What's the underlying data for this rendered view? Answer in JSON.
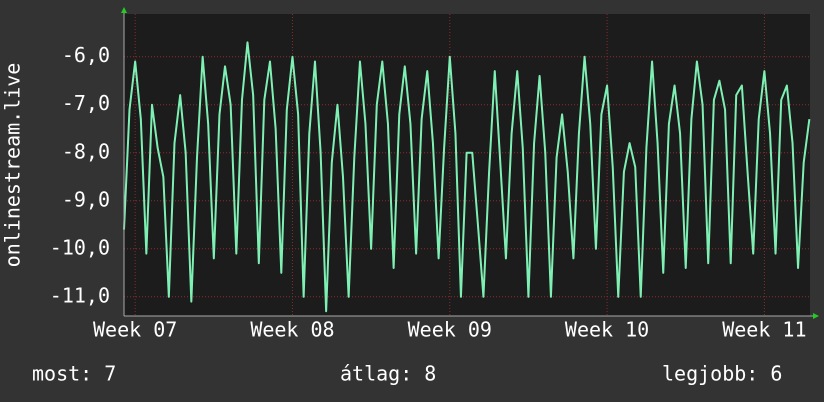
{
  "chart_data": {
    "type": "line",
    "y_label": "onlinestream.live",
    "x": [
      6.929,
      6.964,
      7,
      7.036,
      7.071,
      7.107,
      7.143,
      7.179,
      7.214,
      7.25,
      7.286,
      7.321,
      7.357,
      7.393,
      7.429,
      7.464,
      7.5,
      7.536,
      7.571,
      7.607,
      7.643,
      7.679,
      7.714,
      7.75,
      7.786,
      7.821,
      7.857,
      7.893,
      7.929,
      7.964,
      8,
      8.036,
      8.071,
      8.107,
      8.143,
      8.179,
      8.214,
      8.25,
      8.286,
      8.321,
      8.357,
      8.393,
      8.429,
      8.464,
      8.5,
      8.536,
      8.571,
      8.607,
      8.643,
      8.679,
      8.714,
      8.75,
      8.786,
      8.821,
      8.857,
      8.893,
      8.929,
      8.964,
      9,
      9.036,
      9.071,
      9.107,
      9.143,
      9.179,
      9.214,
      9.25,
      9.286,
      9.321,
      9.357,
      9.393,
      9.429,
      9.464,
      9.5,
      9.536,
      9.571,
      9.607,
      9.643,
      9.679,
      9.714,
      9.75,
      9.786,
      9.821,
      9.857,
      9.893,
      9.929,
      9.964,
      10,
      10.036,
      10.071,
      10.107,
      10.143,
      10.179,
      10.214,
      10.25,
      10.286,
      10.321,
      10.357,
      10.393,
      10.429,
      10.464,
      10.5,
      10.536,
      10.571,
      10.607,
      10.643,
      10.679,
      10.714,
      10.75,
      10.786,
      10.821,
      10.857,
      10.893,
      10.929,
      10.964,
      11,
      11.036,
      11.071,
      11.107,
      11.143,
      11.179,
      11.214,
      11.25,
      11.286
    ],
    "series": [
      {
        "name": "onlinestream.live",
        "color": "#7ff0b4",
        "values": [
          -9.6,
          -7.1,
          -6.1,
          -7.3,
          -10.1,
          -7.0,
          -7.9,
          -8.5,
          -11.0,
          -7.8,
          -6.8,
          -8.0,
          -11.1,
          -8.1,
          -6.0,
          -7.4,
          -10.2,
          -7.2,
          -6.2,
          -7.0,
          -10.1,
          -6.9,
          -5.7,
          -6.8,
          -10.3,
          -6.9,
          -6.1,
          -7.5,
          -10.5,
          -7.1,
          -6.0,
          -7.2,
          -11.0,
          -7.6,
          -6.1,
          -8.0,
          -11.3,
          -8.2,
          -7.0,
          -8.5,
          -11.0,
          -8.1,
          -6.1,
          -7.4,
          -10.0,
          -7.0,
          -6.1,
          -7.4,
          -10.4,
          -7.2,
          -6.2,
          -7.4,
          -10.1,
          -7.3,
          -6.3,
          -7.8,
          -10.2,
          -7.9,
          -6.0,
          -7.6,
          -11.0,
          -8.0,
          -8.0,
          -9.5,
          -11.0,
          -8.4,
          -6.3,
          -8.2,
          -10.2,
          -7.6,
          -6.3,
          -7.9,
          -11.0,
          -7.8,
          -6.4,
          -8.0,
          -11.0,
          -8.1,
          -7.2,
          -8.4,
          -10.2,
          -7.6,
          -6.0,
          -7.4,
          -10.0,
          -7.2,
          -6.6,
          -8.3,
          -11.0,
          -8.4,
          -7.8,
          -8.3,
          -11.0,
          -7.9,
          -6.1,
          -7.8,
          -10.5,
          -7.4,
          -6.6,
          -7.6,
          -10.4,
          -7.3,
          -6.1,
          -7.0,
          -10.3,
          -6.9,
          -6.5,
          -7.1,
          -10.3,
          -6.8,
          -6.6,
          -8.4,
          -10.1,
          -7.3,
          -6.3,
          -7.6,
          -10.1,
          -6.9,
          -6.6,
          -7.8,
          -10.4,
          -8.2,
          -7.3
        ]
      }
    ],
    "xlim": [
      6.929,
      11.29
    ],
    "xticks": [
      {
        "value": 7,
        "label": "Week 07"
      },
      {
        "value": 8,
        "label": "Week 08"
      },
      {
        "value": 9,
        "label": "Week 09"
      },
      {
        "value": 10,
        "label": "Week 10"
      },
      {
        "value": 11,
        "label": "Week 11"
      }
    ],
    "ylim": [
      -11.4,
      -5.11
    ],
    "yticks": [
      {
        "value": -11,
        "label": "-11,0"
      },
      {
        "value": -10,
        "label": "-10,0"
      },
      {
        "value": -9,
        "label": "-9,0"
      },
      {
        "value": -8,
        "label": "-8,0"
      },
      {
        "value": -7,
        "label": "-7,0"
      },
      {
        "value": -6,
        "label": "-6,0"
      }
    ],
    "grid": true,
    "footer": [
      "most: 7",
      "átlag: 8",
      "legjobb: 6"
    ]
  }
}
